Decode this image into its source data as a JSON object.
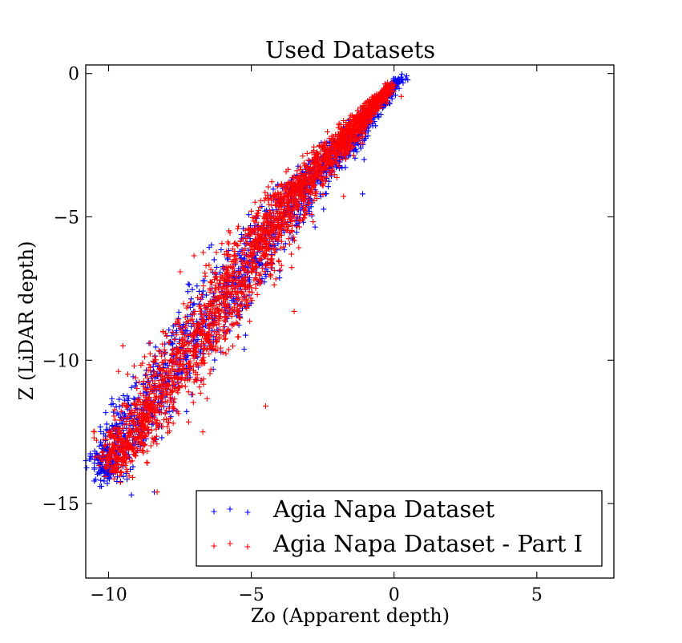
{
  "chart_data": {
    "type": "scatter",
    "title": "Used Datasets",
    "xlabel": "Zo (Apparent depth)",
    "ylabel": "Z (LiDAR depth)",
    "xlim": [
      -10.8,
      7.7
    ],
    "ylim": [
      -17.6,
      0.3
    ],
    "xticks": [
      -10,
      -5,
      0,
      5
    ],
    "yticks": [
      0,
      -5,
      -10,
      -15
    ],
    "xtick_labels": [
      "−10",
      "−5",
      "0",
      "5"
    ],
    "ytick_labels": [
      "0",
      "−5",
      "−10",
      "−15"
    ],
    "grid": false,
    "legend_position": "lower-right",
    "marker": "+",
    "series": [
      {
        "name": "Agia Napa Dataset",
        "color": "#0000ff",
        "trend": [
          [
            0.2,
            -0.2
          ],
          [
            -0.5,
            -1.0
          ],
          [
            -1.2,
            -2.0
          ],
          [
            -2.0,
            -2.8
          ],
          [
            -3.0,
            -3.8
          ],
          [
            -4.0,
            -5.0
          ],
          [
            -5.0,
            -6.4
          ],
          [
            -6.0,
            -7.8
          ],
          [
            -7.0,
            -9.2
          ],
          [
            -8.0,
            -10.6
          ],
          [
            -9.0,
            -12.0
          ],
          [
            -9.8,
            -13.2
          ],
          [
            -10.3,
            -14.0
          ]
        ],
        "spread": [
          0.15,
          0.3,
          0.4,
          0.5,
          0.6,
          0.8,
          1.0,
          1.0,
          1.0,
          1.0,
          0.9,
          0.8,
          0.6
        ],
        "extreme_points": [
          [
            0.25,
            -0.2
          ],
          [
            -10.5,
            -13.8
          ],
          [
            -10.3,
            -14.4
          ],
          [
            -9.2,
            -14.7
          ],
          [
            -5.4,
            -6.2
          ],
          [
            -1.1,
            -4.2
          ],
          [
            -0.9,
            -2.0
          ],
          [
            -8.4,
            -14.6
          ]
        ]
      },
      {
        "name": "Agia Napa Dataset - Part I",
        "color": "#ff0000",
        "trend": [
          [
            -0.2,
            -0.5
          ],
          [
            -0.8,
            -1.2
          ],
          [
            -1.5,
            -2.0
          ],
          [
            -2.3,
            -2.9
          ],
          [
            -3.2,
            -3.9
          ],
          [
            -4.0,
            -5.0
          ],
          [
            -4.8,
            -6.2
          ],
          [
            -5.7,
            -7.5
          ],
          [
            -6.6,
            -8.8
          ],
          [
            -7.5,
            -10.1
          ],
          [
            -8.5,
            -11.6
          ],
          [
            -9.3,
            -12.8
          ],
          [
            -10.0,
            -13.7
          ]
        ],
        "spread": [
          0.15,
          0.25,
          0.4,
          0.5,
          0.6,
          0.8,
          1.0,
          1.0,
          1.0,
          1.0,
          0.9,
          0.8,
          0.6
        ],
        "extreme_points": [
          [
            0.25,
            -0.8
          ],
          [
            -5.0,
            -4.8
          ],
          [
            -9.5,
            -9.5
          ],
          [
            -4.5,
            -11.6
          ],
          [
            -3.5,
            -8.3
          ],
          [
            -10.5,
            -12.5
          ],
          [
            -8.3,
            -14.6
          ],
          [
            -6.7,
            -12.5
          ]
        ]
      }
    ]
  }
}
